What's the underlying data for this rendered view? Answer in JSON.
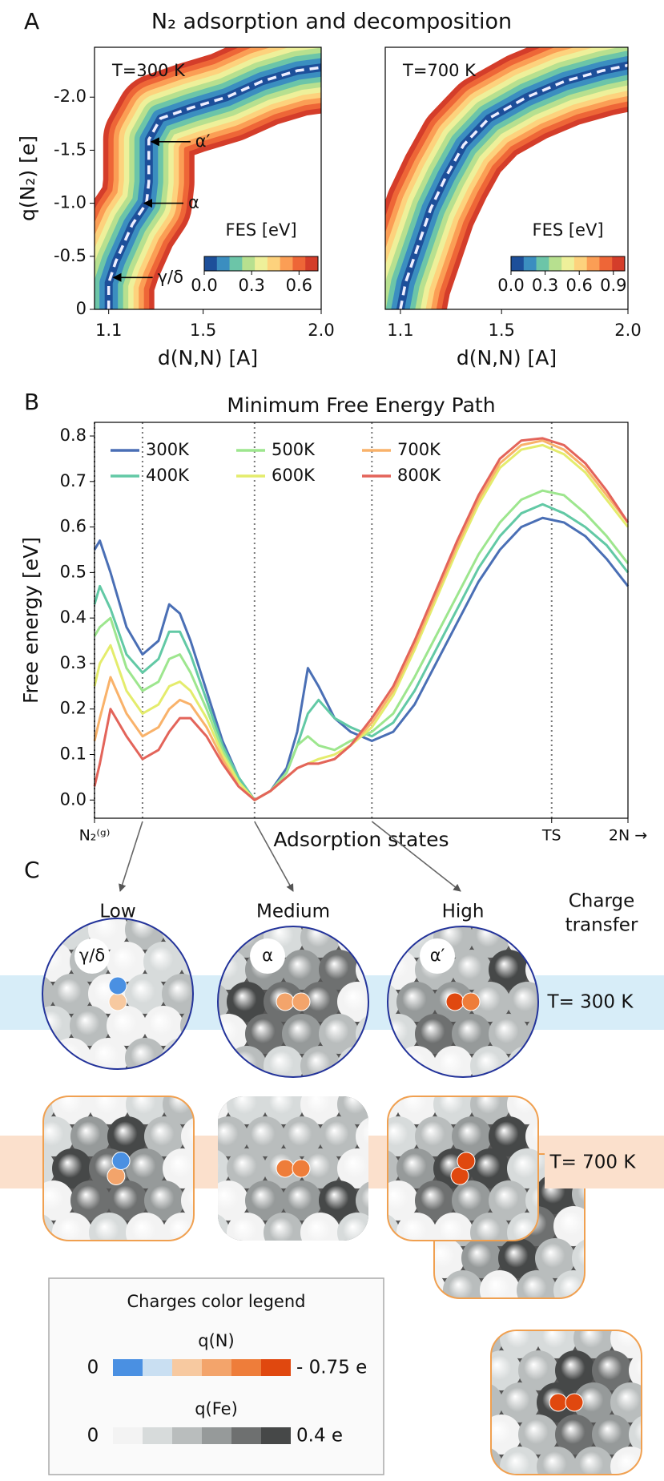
{
  "title": "N₂ adsorption and decomposition",
  "panel_labels": [
    "A",
    "B",
    "C"
  ],
  "chart_data": [
    {
      "type": "fes",
      "temperature_label": "T=300 K",
      "xlabel": "d(N,N) [A]",
      "ylabel": "q(N₂) [e]",
      "xlim": [
        1.04,
        2.0
      ],
      "xticks": [
        1.1,
        1.5,
        {
          "value": 2,
          "label": "2.0"
        }
      ],
      "ylim": [
        0,
        -2.47
      ],
      "yticks": [
        0,
        -0.5,
        {
          "value": -1,
          "label": "-1.0"
        },
        -1.5,
        {
          "value": -2,
          "label": "-2.0"
        }
      ],
      "path": {
        "x": [
          1.1,
          1.1,
          1.13,
          1.2,
          1.26,
          1.27,
          1.27,
          1.32,
          1.45,
          1.6,
          1.75,
          1.9,
          2.0
        ],
        "y": [
          0,
          -0.25,
          -0.45,
          -0.8,
          -1.0,
          -1.2,
          -1.6,
          -1.8,
          -1.9,
          -2.0,
          -2.15,
          -2.25,
          -2.28
        ]
      },
      "colorbar": {
        "label": "FES [eV]",
        "clim": [
          0,
          0.72
        ],
        "ticks": [
          {
            "value": 0,
            "label": "0.0"
          },
          0.3,
          0.6
        ],
        "colors": [
          "#1d4f9a",
          "#3b8ec0",
          "#6cc5a8",
          "#b7e08f",
          "#eef09a",
          "#fdd27d",
          "#fb9e55",
          "#ee6637",
          "#d43d2a"
        ]
      },
      "annotations": [
        {
          "text": "α′",
          "x": 1.27,
          "y": -1.58
        },
        {
          "text": "α",
          "x": 1.24,
          "y": -1.0
        },
        {
          "text": "γ/δ",
          "x": 1.11,
          "y": -0.3
        }
      ]
    },
    {
      "type": "fes",
      "temperature_label": "T=700 K",
      "xlabel": "d(N,N) [A]",
      "xlim": [
        1.04,
        2.0
      ],
      "xticks": [
        1.1,
        1.5,
        {
          "value": 2,
          "label": "2.0"
        }
      ],
      "ylim": [
        0,
        -2.47
      ],
      "path": {
        "x": [
          1.1,
          1.12,
          1.17,
          1.22,
          1.28,
          1.35,
          1.45,
          1.6,
          1.75,
          1.9,
          2.0
        ],
        "y": [
          0,
          -0.25,
          -0.6,
          -0.95,
          -1.25,
          -1.55,
          -1.8,
          -2.0,
          -2.15,
          -2.25,
          -2.3
        ]
      },
      "colorbar": {
        "label": "FES [eV]",
        "clim": [
          0,
          1.0
        ],
        "ticks": [
          {
            "value": 0,
            "label": "0.0"
          },
          0.3,
          0.6,
          0.9
        ],
        "colors": [
          "#1d4f9a",
          "#3b8ec0",
          "#6cc5a8",
          "#b7e08f",
          "#eef09a",
          "#fdd27d",
          "#fb9e55",
          "#ee6637",
          "#d43d2a"
        ]
      }
    },
    {
      "type": "line",
      "title": "Minimum Free Energy Path",
      "xlabel": "Adsorption states",
      "ylabel": "Free energy [eV]",
      "x": [
        0,
        1,
        3,
        6,
        9,
        12,
        14,
        16,
        18,
        21,
        24,
        27,
        30,
        33,
        36,
        38,
        40,
        42,
        45,
        48,
        52,
        56,
        60,
        64,
        68,
        72,
        76,
        80,
        84,
        88,
        92,
        96,
        100
      ],
      "xlim": [
        0,
        100
      ],
      "xticks": [
        {
          "value": 0,
          "label": "N₂⁽ᵍ⁾"
        },
        {
          "value": 85.7,
          "label": "TS"
        },
        {
          "value": 100,
          "label": "2N →"
        }
      ],
      "vlines": [
        0,
        9,
        30,
        52,
        85.7
      ],
      "ylim": [
        -0.04,
        0.83
      ],
      "yticks": [
        {
          "value": 0,
          "label": "0.0"
        },
        0.1,
        0.2,
        0.3,
        0.4,
        0.5,
        0.6,
        0.7,
        0.8
      ],
      "legend": "upper left",
      "series": [
        {
          "name": "300K",
          "color": "#4a6fb5",
          "values": [
            0.55,
            0.57,
            0.5,
            0.38,
            0.32,
            0.35,
            0.43,
            0.41,
            0.35,
            0.24,
            0.13,
            0.05,
            0.0,
            0.02,
            0.07,
            0.15,
            0.29,
            0.25,
            0.18,
            0.15,
            0.13,
            0.15,
            0.21,
            0.3,
            0.39,
            0.48,
            0.55,
            0.6,
            0.62,
            0.61,
            0.58,
            0.53,
            0.47
          ]
        },
        {
          "name": "400K",
          "color": "#62c9a5",
          "values": [
            0.43,
            0.47,
            0.42,
            0.32,
            0.28,
            0.31,
            0.37,
            0.37,
            0.32,
            0.22,
            0.12,
            0.05,
            0.0,
            0.02,
            0.06,
            0.12,
            0.19,
            0.22,
            0.18,
            0.16,
            0.14,
            0.17,
            0.24,
            0.33,
            0.42,
            0.51,
            0.58,
            0.63,
            0.65,
            0.63,
            0.6,
            0.56,
            0.5
          ]
        },
        {
          "name": "500K",
          "color": "#9de68e",
          "values": [
            0.36,
            0.38,
            0.4,
            0.29,
            0.24,
            0.26,
            0.31,
            0.32,
            0.28,
            0.2,
            0.11,
            0.04,
            0.0,
            0.02,
            0.06,
            0.12,
            0.14,
            0.12,
            0.11,
            0.13,
            0.15,
            0.19,
            0.27,
            0.36,
            0.45,
            0.54,
            0.61,
            0.66,
            0.68,
            0.67,
            0.63,
            0.58,
            0.52
          ]
        },
        {
          "name": "600K",
          "color": "#e4ec6c",
          "values": [
            0.25,
            0.3,
            0.34,
            0.24,
            0.19,
            0.21,
            0.25,
            0.26,
            0.24,
            0.18,
            0.1,
            0.04,
            0.0,
            0.02,
            0.05,
            0.07,
            0.08,
            0.09,
            0.1,
            0.12,
            0.16,
            0.23,
            0.33,
            0.44,
            0.55,
            0.65,
            0.73,
            0.77,
            0.78,
            0.76,
            0.72,
            0.66,
            0.6
          ]
        },
        {
          "name": "700K",
          "color": "#f9b26a",
          "values": [
            0.13,
            0.18,
            0.27,
            0.19,
            0.14,
            0.16,
            0.2,
            0.22,
            0.21,
            0.16,
            0.09,
            0.03,
            0.0,
            0.02,
            0.05,
            0.07,
            0.08,
            0.08,
            0.09,
            0.12,
            0.17,
            0.24,
            0.34,
            0.45,
            0.56,
            0.66,
            0.74,
            0.78,
            0.79,
            0.77,
            0.73,
            0.67,
            0.61
          ]
        },
        {
          "name": "800K",
          "color": "#e3645a",
          "values": [
            0.03,
            0.08,
            0.2,
            0.14,
            0.09,
            0.11,
            0.15,
            0.18,
            0.18,
            0.14,
            0.08,
            0.03,
            0.0,
            0.02,
            0.05,
            0.07,
            0.08,
            0.08,
            0.09,
            0.12,
            0.18,
            0.25,
            0.35,
            0.46,
            0.57,
            0.67,
            0.75,
            0.79,
            0.795,
            0.78,
            0.74,
            0.68,
            0.61
          ]
        }
      ]
    }
  ],
  "panel_c": {
    "columns": [
      "Low",
      "Medium",
      "High"
    ],
    "side_header": [
      "Charge",
      "transfer"
    ],
    "rows": [
      "T= 300 K",
      "T= 700 K"
    ],
    "states": [
      "γ/δ",
      "α",
      "α′"
    ],
    "legend": {
      "title": "Charges color legend",
      "scales": [
        {
          "label": "q(N)",
          "min_label": "0",
          "max_label": "- 0.75 e",
          "colors": [
            "#4a90e2",
            "#c9dff2",
            "#f7c9a0",
            "#f3a46b",
            "#ee7d3a",
            "#e0480f"
          ]
        },
        {
          "label": "q(Fe)",
          "min_label": "0",
          "max_label": "0.4 e",
          "colors": [
            "#f3f3f3",
            "#d7dbdb",
            "#b9bdbd",
            "#969a9a",
            "#6e7070",
            "#464848"
          ]
        }
      ]
    }
  }
}
